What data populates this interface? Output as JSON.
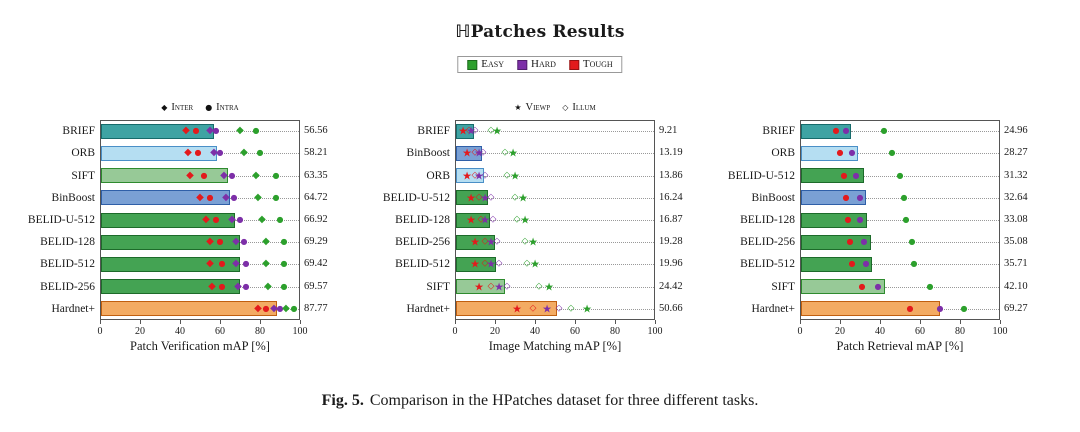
{
  "title": "ℍPatches Results",
  "legend": {
    "items": [
      {
        "label": "Easy",
        "color": "#2ca02c"
      },
      {
        "label": "Hard",
        "color": "#7d2fa8"
      },
      {
        "label": "Tough",
        "color": "#e31a1c"
      }
    ]
  },
  "colors": {
    "easy": "#2ca02c",
    "hard": "#7d2fa8",
    "tough": "#e31a1c"
  },
  "caption": {
    "label": "Fig. 5.",
    "text": "Comparison in the HPatches dataset for three different tasks."
  },
  "chart_data": [
    {
      "type": "bar",
      "orientation": "horizontal",
      "xlabel": "Patch Verification mAP [%]",
      "xlim": [
        0,
        100
      ],
      "xticks": [
        0,
        20,
        40,
        60,
        80,
        100
      ],
      "marker_legend": [
        {
          "symbol": "diamond",
          "label": "Inter"
        },
        {
          "symbol": "dot",
          "label": "Intra"
        }
      ],
      "marker_series": [
        {
          "color": "tough",
          "symbol": "diamond"
        },
        {
          "color": "tough",
          "symbol": "dot"
        },
        {
          "color": "hard",
          "symbol": "diamond"
        },
        {
          "color": "hard",
          "symbol": "dot"
        },
        {
          "color": "easy",
          "symbol": "diamond"
        },
        {
          "color": "easy",
          "symbol": "dot"
        }
      ],
      "categories": [
        "BRIEF",
        "ORB",
        "SIFT",
        "BinBoost",
        "BELID-U-512",
        "BELID-128",
        "BELID-512",
        "BELID-256",
        "Hardnet+"
      ],
      "values": [
        56.56,
        58.21,
        63.35,
        64.72,
        66.92,
        69.29,
        69.42,
        69.57,
        87.77
      ],
      "value_labels": [
        "56.56",
        "58.21",
        "63.35",
        "64.72",
        "66.92",
        "69.29",
        "69.42",
        "69.57",
        "87.77"
      ],
      "bar_fill": [
        "#3fa3a3",
        "#b5def2",
        "#97c997",
        "#7aa0d4",
        "#44a353",
        "#44a353",
        "#44a353",
        "#44a353",
        "#f3ab63"
      ],
      "bar_edge": [
        "#176b6b",
        "#4a8fc7",
        "#2e8b2e",
        "#2f5fa8",
        "#1d6b2a",
        "#1d6b2a",
        "#1d6b2a",
        "#1d6b2a",
        "#c05f10"
      ],
      "marker_values": [
        [
          43,
          48,
          55,
          58,
          70,
          78
        ],
        [
          44,
          49,
          57,
          60,
          72,
          80
        ],
        [
          45,
          52,
          62,
          66,
          78,
          88
        ],
        [
          50,
          55,
          63,
          67,
          79,
          88
        ],
        [
          53,
          58,
          66,
          70,
          81,
          90
        ],
        [
          55,
          60,
          68,
          72,
          83,
          92
        ],
        [
          55,
          61,
          68,
          73,
          83,
          92
        ],
        [
          56,
          61,
          69,
          73,
          84,
          92
        ],
        [
          79,
          83,
          87,
          90,
          93,
          97
        ]
      ]
    },
    {
      "type": "bar",
      "orientation": "horizontal",
      "xlabel": "Image Matching mAP [%]",
      "xlim": [
        0,
        100
      ],
      "xticks": [
        0,
        20,
        40,
        60,
        80,
        100
      ],
      "marker_legend": [
        {
          "symbol": "star",
          "label": "Viewp"
        },
        {
          "symbol": "open-diamond",
          "label": "Illum"
        }
      ],
      "marker_series": [
        {
          "color": "tough",
          "symbol": "star"
        },
        {
          "color": "tough",
          "symbol": "open-diamond"
        },
        {
          "color": "hard",
          "symbol": "star"
        },
        {
          "color": "hard",
          "symbol": "open-diamond"
        },
        {
          "color": "easy",
          "symbol": "open-diamond"
        },
        {
          "color": "easy",
          "symbol": "star"
        }
      ],
      "categories": [
        "BRIEF",
        "BinBoost",
        "ORB",
        "BELID-U-512",
        "BELID-128",
        "BELID-256",
        "BELID-512",
        "SIFT",
        "Hardnet+"
      ],
      "values": [
        9.21,
        13.19,
        13.86,
        16.24,
        16.87,
        19.28,
        19.96,
        24.42,
        50.66
      ],
      "value_labels": [
        "9.21",
        "13.19",
        "13.86",
        "16.24",
        "16.87",
        "19.28",
        "19.96",
        "24.42",
        "50.66"
      ],
      "bar_fill": [
        "#3fa3a3",
        "#7aa0d4",
        "#b5def2",
        "#44a353",
        "#44a353",
        "#44a353",
        "#44a353",
        "#97c997",
        "#f3ab63"
      ],
      "bar_edge": [
        "#176b6b",
        "#2f5fa8",
        "#4a8fc7",
        "#1d6b2a",
        "#1d6b2a",
        "#1d6b2a",
        "#1d6b2a",
        "#2e8b2e",
        "#c05f10"
      ],
      "marker_values": [
        [
          4,
          7,
          8,
          10,
          18,
          21
        ],
        [
          6,
          10,
          12,
          14,
          25,
          29
        ],
        [
          6,
          10,
          12,
          15,
          26,
          30
        ],
        [
          8,
          12,
          15,
          18,
          30,
          34
        ],
        [
          8,
          13,
          15,
          19,
          31,
          35
        ],
        [
          10,
          15,
          18,
          21,
          35,
          39
        ],
        [
          10,
          15,
          18,
          22,
          36,
          40
        ],
        [
          12,
          18,
          22,
          26,
          42,
          47
        ],
        [
          31,
          39,
          46,
          52,
          58,
          66
        ]
      ]
    },
    {
      "type": "bar",
      "orientation": "horizontal",
      "xlabel": "Patch Retrieval mAP [%]",
      "xlim": [
        0,
        100
      ],
      "xticks": [
        0,
        20,
        40,
        60,
        80,
        100
      ],
      "marker_legend": null,
      "marker_series": [
        {
          "color": "tough",
          "symbol": "dot"
        },
        {
          "color": "hard",
          "symbol": "dot"
        },
        {
          "color": "easy",
          "symbol": "dot"
        }
      ],
      "categories": [
        "BRIEF",
        "ORB",
        "BELID-U-512",
        "BinBoost",
        "BELID-128",
        "BELID-256",
        "BELID-512",
        "SIFT",
        "Hardnet+"
      ],
      "values": [
        24.96,
        28.27,
        31.32,
        32.64,
        33.08,
        35.08,
        35.71,
        42.1,
        69.27
      ],
      "value_labels": [
        "24.96",
        "28.27",
        "31.32",
        "32.64",
        "33.08",
        "35.08",
        "35.71",
        "42.10",
        "69.27"
      ],
      "bar_fill": [
        "#3fa3a3",
        "#b5def2",
        "#44a353",
        "#7aa0d4",
        "#44a353",
        "#44a353",
        "#44a353",
        "#97c997",
        "#f3ab63"
      ],
      "bar_edge": [
        "#176b6b",
        "#4a8fc7",
        "#1d6b2a",
        "#2f5fa8",
        "#1d6b2a",
        "#1d6b2a",
        "#1d6b2a",
        "#2e8b2e",
        "#c05f10"
      ],
      "marker_values": [
        [
          18,
          23,
          42
        ],
        [
          20,
          26,
          46
        ],
        [
          22,
          28,
          50
        ],
        [
          23,
          30,
          52
        ],
        [
          24,
          30,
          53
        ],
        [
          25,
          32,
          56
        ],
        [
          26,
          33,
          57
        ],
        [
          31,
          39,
          65
        ],
        [
          55,
          70,
          82
        ]
      ]
    }
  ]
}
